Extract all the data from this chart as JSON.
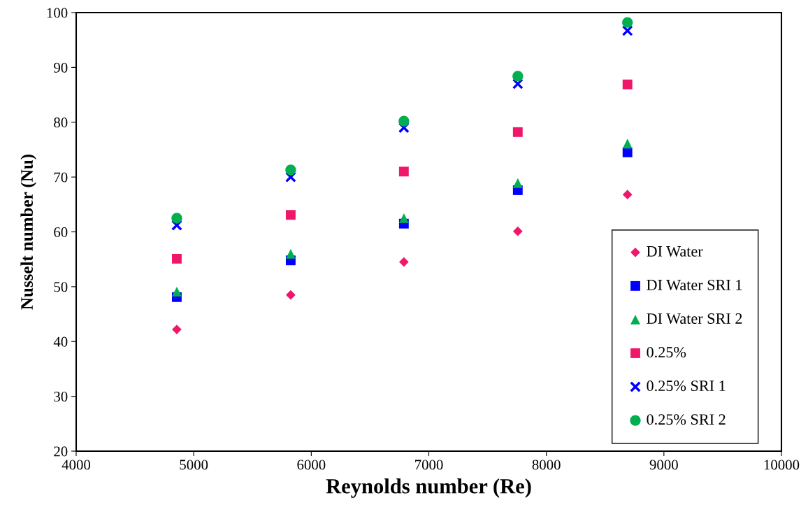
{
  "chart_data": {
    "type": "scatter",
    "xlabel": "Reynolds number (Re)",
    "ylabel": "Nusselt number (Nu)",
    "x": [
      4856,
      5825,
      6788,
      7757,
      8690
    ],
    "series": [
      {
        "name": "DI Water",
        "color": "#f0176b",
        "marker": "diamond",
        "values": [
          42.2,
          48.5,
          54.5,
          60.1,
          66.8
        ]
      },
      {
        "name": "DI Water SRI 1",
        "color": "#0000ff",
        "marker": "square",
        "values": [
          48.1,
          54.8,
          61.5,
          67.6,
          74.5
        ]
      },
      {
        "name": "DI Water SRI 2",
        "color": "#00b050",
        "marker": "triangle",
        "values": [
          49.1,
          56.0,
          62.5,
          68.9,
          76.1
        ]
      },
      {
        "name": "0.25%",
        "color": "#f0176b",
        "marker": "square",
        "values": [
          55.1,
          63.1,
          71.0,
          78.2,
          86.9
        ]
      },
      {
        "name": "0.25% SRI 1",
        "color": "#0000ff",
        "marker": "cross",
        "values": [
          61.2,
          70.0,
          79.0,
          87.0,
          96.7
        ]
      },
      {
        "name": "0.25% SRI 2",
        "color": "#00b050",
        "marker": "circle",
        "values": [
          62.5,
          71.3,
          80.2,
          88.4,
          98.2
        ]
      }
    ],
    "xlim": [
      4000,
      10000
    ],
    "xticks": [
      4000,
      5000,
      6000,
      7000,
      8000,
      9000,
      10000
    ],
    "ylim": [
      20,
      100
    ],
    "yticks": [
      20,
      30,
      40,
      50,
      60,
      70,
      80,
      90,
      100
    ],
    "grid": false,
    "legend": "lower right"
  }
}
